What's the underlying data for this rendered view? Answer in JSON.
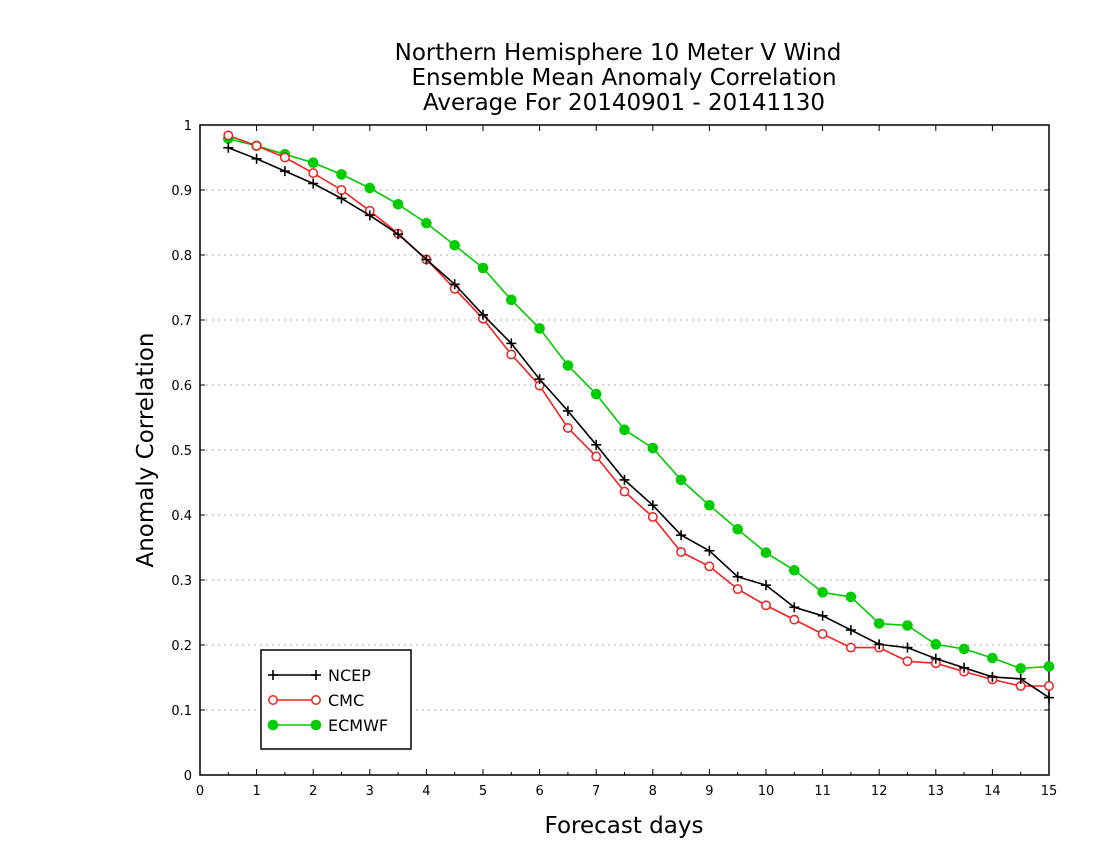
{
  "chart_data": {
    "type": "line",
    "title_lines": [
      "Northern Hemisphere 10 Meter V Wind",
      "Ensemble Mean Anomaly Correlation",
      "Average For 20140901 - 20141130"
    ],
    "xlabel": "Forecast days",
    "ylabel": "Anomaly Correlation",
    "xlim": [
      0,
      15
    ],
    "ylim": [
      0,
      1
    ],
    "x_ticks": [
      "0",
      "1",
      "2",
      "3",
      "4",
      "5",
      "6",
      "7",
      "8",
      "9",
      "10",
      "11",
      "12",
      "13",
      "14",
      "15"
    ],
    "y_ticks": [
      "0",
      "0.1",
      "0.2",
      "0.3",
      "0.4",
      "0.5",
      "0.6",
      "0.7",
      "0.8",
      "0.9",
      "1"
    ],
    "grid": "horizontal dotted",
    "legend_position": "bottom-left",
    "x": [
      0.5,
      1,
      1.5,
      2,
      2.5,
      3,
      3.5,
      4,
      4.5,
      5,
      5.5,
      6,
      6.5,
      7,
      7.5,
      8,
      8.5,
      9,
      9.5,
      10,
      10.5,
      11,
      11.5,
      12,
      12.5,
      13,
      13.5,
      14,
      14.5,
      15
    ],
    "series": [
      {
        "name": "NCEP",
        "color": "#000000",
        "marker": "plus",
        "values": [
          0.965,
          0.948,
          0.929,
          0.91,
          0.887,
          0.861,
          0.832,
          0.793,
          0.755,
          0.708,
          0.664,
          0.609,
          0.56,
          0.508,
          0.454,
          0.415,
          0.369,
          0.345,
          0.305,
          0.292,
          0.258,
          0.245,
          0.223,
          0.201,
          0.196,
          0.179,
          0.165,
          0.151,
          0.148,
          0.119
        ]
      },
      {
        "name": "CMC",
        "color": "#ee2222",
        "marker": "open-circle",
        "values": [
          0.984,
          0.968,
          0.95,
          0.926,
          0.9,
          0.868,
          0.833,
          0.793,
          0.748,
          0.702,
          0.647,
          0.599,
          0.534,
          0.49,
          0.436,
          0.397,
          0.343,
          0.321,
          0.286,
          0.261,
          0.239,
          0.217,
          0.196,
          0.196,
          0.175,
          0.172,
          0.159,
          0.147,
          0.137,
          0.137
        ]
      },
      {
        "name": "ECMWF",
        "color": "#00cc00",
        "marker": "filled-circle",
        "values": [
          0.979,
          0.968,
          0.955,
          0.942,
          0.924,
          0.903,
          0.878,
          0.849,
          0.815,
          0.78,
          0.731,
          0.687,
          0.63,
          0.586,
          0.531,
          0.503,
          0.454,
          0.415,
          0.378,
          0.342,
          0.315,
          0.281,
          0.274,
          0.233,
          0.23,
          0.201,
          0.194,
          0.18,
          0.164,
          0.167
        ]
      }
    ]
  }
}
